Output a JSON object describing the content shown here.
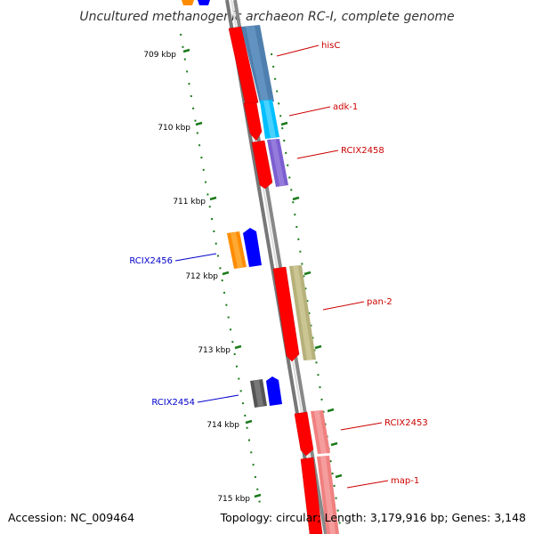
{
  "title": "Uncultured methanogenic archaeon RC-I, complete genome",
  "footer": {
    "accession": "Accession: NC_009464",
    "topology": "Topology: circular; Length: 3,179,916 bp; Genes: 3,148"
  },
  "ticks": [
    "709 kbp",
    "710 kbp",
    "711 kbp",
    "712 kbp",
    "713 kbp",
    "714 kbp",
    "715 kbp"
  ],
  "colors": {
    "backbone": "#888888",
    "forward_label": "#cc0000",
    "reverse_label": "#0000cc",
    "tick": "#1a7a1a"
  },
  "genes": [
    {
      "label": "hisC",
      "strand": "forward"
    },
    {
      "label": "adk-1",
      "strand": "forward"
    },
    {
      "label": "RCIX2458",
      "strand": "forward"
    },
    {
      "label": "RCIX2456",
      "strand": "reverse"
    },
    {
      "label": "pan-2",
      "strand": "forward"
    },
    {
      "label": "RCIX2454",
      "strand": "reverse"
    },
    {
      "label": "RCIX2453",
      "strand": "forward"
    },
    {
      "label": "map-1",
      "strand": "forward"
    }
  ]
}
